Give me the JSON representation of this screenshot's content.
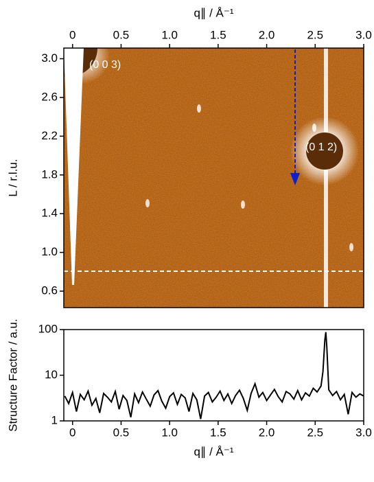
{
  "chart_data": [
    {
      "type": "image",
      "x_label": "q∥ / Å⁻¹",
      "y_label": "L / r.l.u.",
      "xaxis_position": "top",
      "xlim": [
        -0.09,
        3.0
      ],
      "ylim": [
        0.43,
        3.11
      ],
      "xticks": [
        0,
        0.5,
        {
          "value": 1,
          "label": "1.0"
        },
        1.5,
        {
          "value": 2,
          "label": "2.0"
        },
        2.5,
        {
          "value": 3,
          "label": "3.0"
        }
      ],
      "yticks": [
        0.6,
        {
          "value": 1,
          "label": "1.0"
        },
        1.4,
        1.8,
        2.2,
        2.6,
        {
          "value": 3,
          "label": "3.0"
        }
      ],
      "annotations": [
        "(0 0 3)",
        "(0 1 2)"
      ],
      "color": "#dd7e22"
    },
    {
      "type": "line",
      "x_label": "q∥ / Å⁻¹",
      "y_label": "Structure Factor / a.u.",
      "log_y": true,
      "xlim": [
        -0.09,
        3.0
      ],
      "ylim": [
        1,
        100
      ],
      "xticks": [
        0,
        0.5,
        {
          "value": 1,
          "label": "1.0"
        },
        1.5,
        {
          "value": 2,
          "label": "2.0"
        },
        2.5,
        {
          "value": 3,
          "label": "3.0"
        }
      ],
      "yticks": [
        1,
        10,
        100
      ],
      "x": [
        -0.08,
        -0.04,
        0,
        0.04,
        0.08,
        0.12,
        0.16,
        0.2,
        0.24,
        0.28,
        0.32,
        0.36,
        0.4,
        0.44,
        0.48,
        0.52,
        0.56,
        0.6,
        0.64,
        0.68,
        0.72,
        0.76,
        0.8,
        0.84,
        0.88,
        0.92,
        0.96,
        1,
        1.04,
        1.08,
        1.12,
        1.16,
        1.2,
        1.24,
        1.28,
        1.32,
        1.36,
        1.4,
        1.44,
        1.48,
        1.52,
        1.56,
        1.6,
        1.64,
        1.68,
        1.72,
        1.76,
        1.8,
        1.84,
        1.88,
        1.92,
        1.96,
        2,
        2.04,
        2.08,
        2.12,
        2.16,
        2.2,
        2.24,
        2.28,
        2.32,
        2.36,
        2.4,
        2.44,
        2.48,
        2.52,
        2.56,
        2.58,
        2.6,
        2.61,
        2.62,
        2.64,
        2.68,
        2.72,
        2.76,
        2.8,
        2.84,
        2.88,
        2.92,
        2.96,
        3
      ],
      "values": [
        3.5,
        2.4,
        4.2,
        1.6,
        3.8,
        2.9,
        4.5,
        2.2,
        3.1,
        1.5,
        4.0,
        3.3,
        2.6,
        4.4,
        1.8,
        3.6,
        2.8,
        1.2,
        3.9,
        2.5,
        4.3,
        3.0,
        2.1,
        3.7,
        4.6,
        2.7,
        1.9,
        3.4,
        4.1,
        2.3,
        3.8,
        3.2,
        1.6,
        4.0,
        2.9,
        1.1,
        3.5,
        4.2,
        2.6,
        3.3,
        4.5,
        2.8,
        3.9,
        2.4,
        3.6,
        4.7,
        3.1,
        1.7,
        4.0,
        6.5,
        3.3,
        4.2,
        2.8,
        3.7,
        4.9,
        3.4,
        2.6,
        4.4,
        3.9,
        3.0,
        4.6,
        2.9,
        4.1,
        3.5,
        5.2,
        4.3,
        5.8,
        12,
        60,
        88,
        40,
        4.8,
        3.6,
        4.4,
        2.9,
        3.8,
        1.4,
        4.2,
        3.3,
        3.9,
        3.5
      ],
      "color": "#000000"
    }
  ]
}
